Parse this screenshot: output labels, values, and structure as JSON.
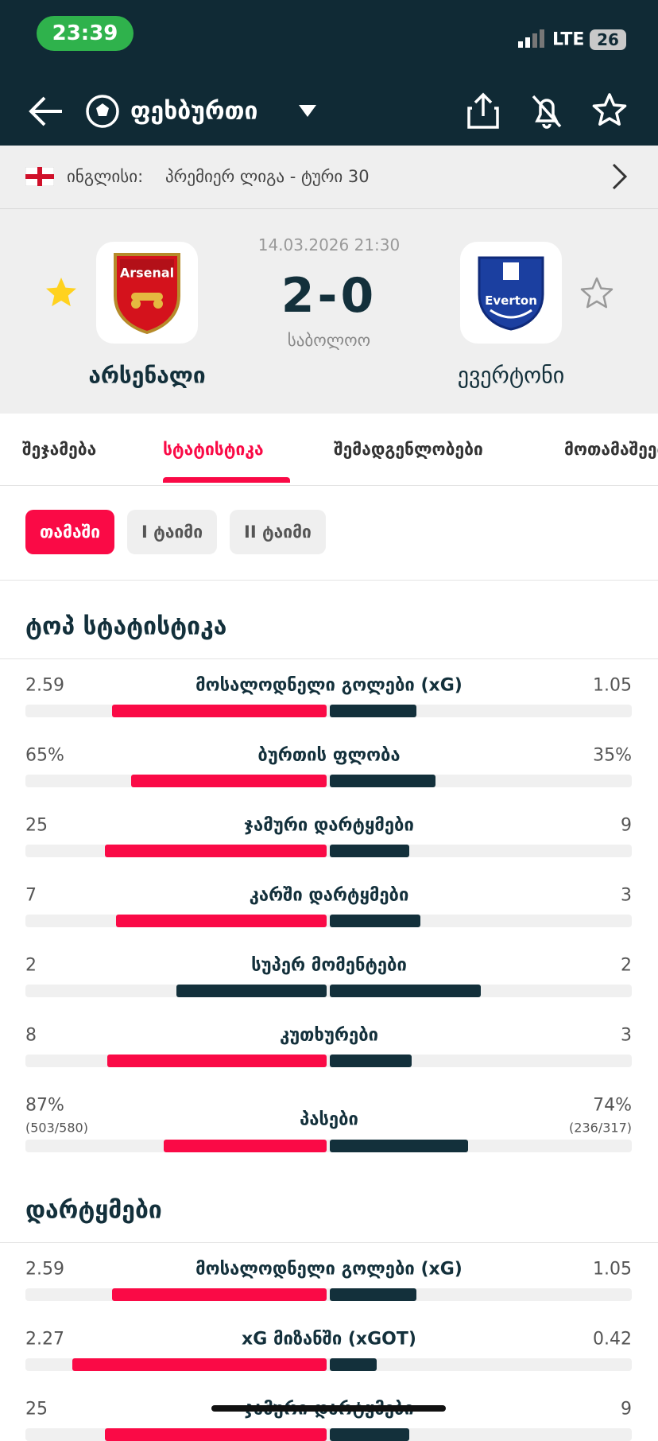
{
  "status_bar": {
    "time": "23:39",
    "network": "LTE",
    "battery": "26"
  },
  "header": {
    "title": "ფეხბურთი"
  },
  "league": {
    "country": "ინგლისი:",
    "competition": "პრემიერ ლიგა - ტური 30"
  },
  "match": {
    "datetime": "14.03.2026 21:30",
    "score": "2-0",
    "status": "საბოლოო",
    "home": {
      "name": "არსენალი",
      "logo_text": "Arsenal"
    },
    "away": {
      "name": "ევერტონი",
      "logo_text": "Everton"
    }
  },
  "tabs": [
    {
      "label": "შეჯამება",
      "active": false
    },
    {
      "label": "სტატისტიკა",
      "active": true
    },
    {
      "label": "შემადგენლობები",
      "active": false
    },
    {
      "label": "მოთამაშეები",
      "active": false
    }
  ],
  "periods": [
    {
      "label": "თამაში",
      "active": true
    },
    {
      "label": "I ტაიმი",
      "active": false
    },
    {
      "label": "II ტაიმი",
      "active": false
    }
  ],
  "colors": {
    "leading": "#fa0a46",
    "trailing": "#13303b"
  },
  "sections": [
    {
      "title": "ტოპ სტატისტიკა",
      "rows": [
        {
          "name": "მოსალოდნელი გოლები (xG)",
          "values": [
            2.59,
            1.05
          ]
        },
        {
          "name": "ბურთის ფლობა",
          "values": [
            65,
            35
          ],
          "value_labels": [
            "65%",
            "35%"
          ]
        },
        {
          "name": "ჯამური დარტყმები",
          "values": [
            25,
            9
          ]
        },
        {
          "name": "კარში დარტყმები",
          "values": [
            7,
            3
          ]
        },
        {
          "name": "სუპერ მომენტები",
          "values": [
            2,
            2
          ]
        },
        {
          "name": "კუთხურები",
          "values": [
            8,
            3
          ]
        },
        {
          "name": "პასები",
          "values": [
            87,
            74
          ],
          "value_labels": [
            "87%",
            "74%"
          ],
          "sub_labels": [
            "(503/580)",
            "(236/317)"
          ]
        }
      ]
    },
    {
      "title": "დარტყმები",
      "rows": [
        {
          "name": "მოსალოდნელი გოლები (xG)",
          "values": [
            2.59,
            1.05
          ]
        },
        {
          "name": "xG მიზანში (xGOT)",
          "values": [
            2.27,
            0.42
          ]
        },
        {
          "name": "ჯამური დარტყმები",
          "values": [
            25,
            9
          ]
        }
      ]
    }
  ]
}
